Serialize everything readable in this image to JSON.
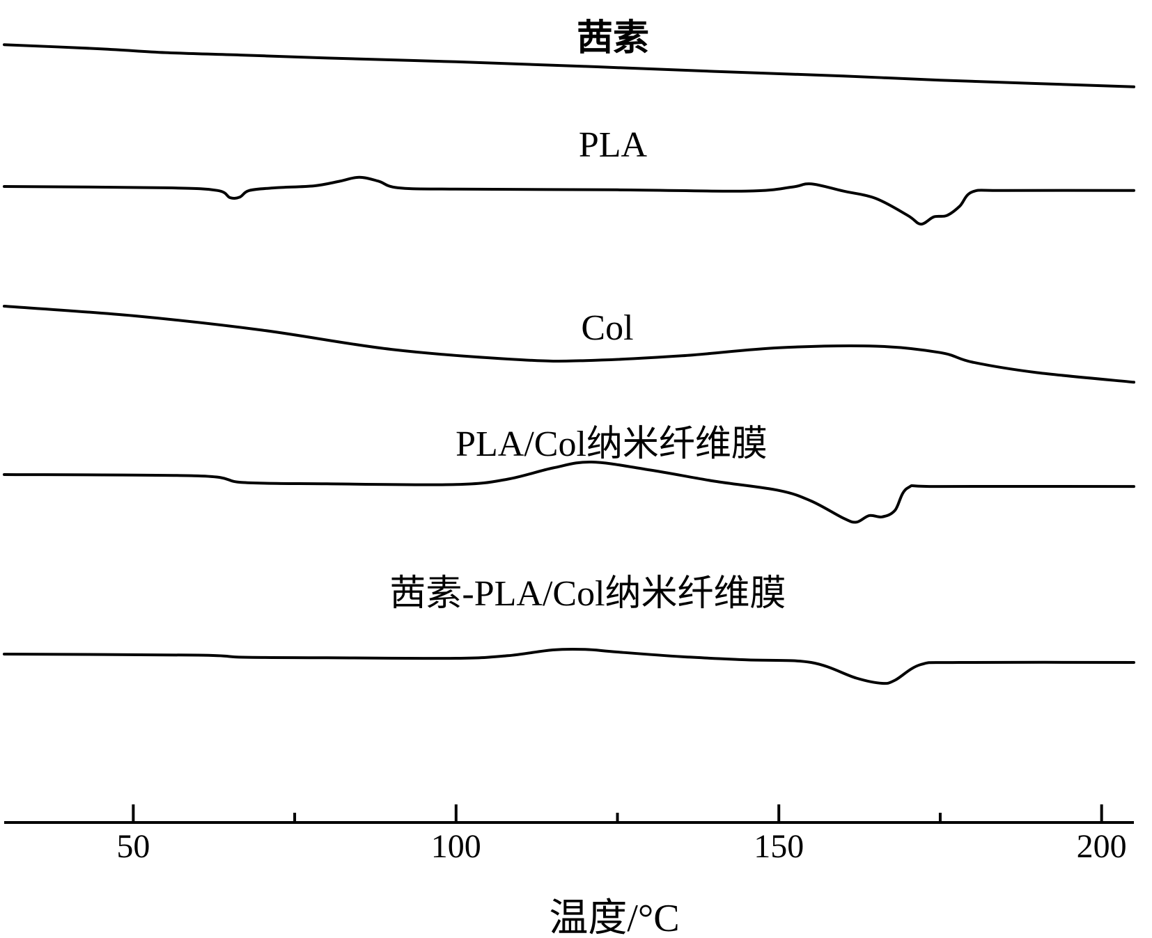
{
  "chart_data": {
    "type": "line",
    "title": "",
    "xlabel": "温度/°C",
    "ylabel": "",
    "xlim": [
      30,
      205
    ],
    "x_ticks": [
      50,
      100,
      150,
      200
    ],
    "x_minor_ticks": [
      75,
      125,
      175
    ],
    "grid": false,
    "legend": "none",
    "series": [
      {
        "name": "茜素",
        "points": [
          [
            30,
            0.35
          ],
          [
            45,
            0.85
          ],
          [
            55,
            1.3
          ],
          [
            67,
            1.6
          ],
          [
            80,
            1.95
          ],
          [
            100,
            2.4
          ],
          [
            120,
            2.95
          ],
          [
            140,
            3.55
          ],
          [
            160,
            4.1
          ],
          [
            175,
            4.6
          ],
          [
            205,
            5.4
          ]
        ]
      },
      {
        "name": "PLA",
        "points": [
          [
            30,
            0.0
          ],
          [
            55,
            0.1
          ],
          [
            63,
            0.3
          ],
          [
            65,
            0.85
          ],
          [
            66.5,
            0.8
          ],
          [
            68,
            0.3
          ],
          [
            72,
            0.1
          ],
          [
            78,
            -0.05
          ],
          [
            82,
            -0.4
          ],
          [
            85,
            -0.7
          ],
          [
            88,
            -0.4
          ],
          [
            91,
            0.1
          ],
          [
            100,
            0.2
          ],
          [
            125,
            0.25
          ],
          [
            145,
            0.35
          ],
          [
            152,
            0.05
          ],
          [
            155,
            -0.2
          ],
          [
            160,
            0.35
          ],
          [
            165,
            0.9
          ],
          [
            170,
            2.2
          ],
          [
            172,
            2.85
          ],
          [
            174,
            2.3
          ],
          [
            176,
            2.2
          ],
          [
            178,
            1.5
          ],
          [
            180,
            0.4
          ],
          [
            185,
            0.3
          ],
          [
            205,
            0.3
          ]
        ]
      },
      {
        "name": "Col",
        "points": [
          [
            30,
            0.0
          ],
          [
            50,
            1.2
          ],
          [
            70,
            3.0
          ],
          [
            90,
            5.4
          ],
          [
            110,
            6.7
          ],
          [
            120,
            6.8
          ],
          [
            135,
            6.2
          ],
          [
            150,
            5.2
          ],
          [
            165,
            5.0
          ],
          [
            175,
            5.8
          ],
          [
            180,
            7.0
          ],
          [
            190,
            8.3
          ],
          [
            205,
            9.5
          ]
        ]
      },
      {
        "name": "PLA/Col纳米纤维膜",
        "points": [
          [
            30,
            0.0
          ],
          [
            60,
            0.1
          ],
          [
            67,
            0.6
          ],
          [
            80,
            0.7
          ],
          [
            100,
            0.75
          ],
          [
            108,
            0.35
          ],
          [
            115,
            -0.5
          ],
          [
            121,
            -0.95
          ],
          [
            130,
            -0.35
          ],
          [
            140,
            0.5
          ],
          [
            150,
            1.2
          ],
          [
            155,
            2.0
          ],
          [
            160,
            3.3
          ],
          [
            162,
            3.6
          ],
          [
            164,
            3.1
          ],
          [
            166,
            3.2
          ],
          [
            168,
            2.7
          ],
          [
            170,
            1.0
          ],
          [
            175,
            0.9
          ],
          [
            205,
            0.9
          ]
        ]
      },
      {
        "name": "茜素-PLA/Col纳米纤维膜",
        "points": [
          [
            30,
            0.0
          ],
          [
            60,
            0.1
          ],
          [
            67,
            0.3
          ],
          [
            80,
            0.35
          ],
          [
            100,
            0.4
          ],
          [
            108,
            0.15
          ],
          [
            115,
            -0.4
          ],
          [
            120,
            -0.45
          ],
          [
            125,
            -0.2
          ],
          [
            135,
            0.25
          ],
          [
            145,
            0.55
          ],
          [
            155,
            0.8
          ],
          [
            162,
            2.3
          ],
          [
            166,
            2.8
          ],
          [
            168,
            2.5
          ],
          [
            172,
            1.0
          ],
          [
            178,
            0.8
          ],
          [
            205,
            0.8
          ]
        ]
      }
    ]
  }
}
